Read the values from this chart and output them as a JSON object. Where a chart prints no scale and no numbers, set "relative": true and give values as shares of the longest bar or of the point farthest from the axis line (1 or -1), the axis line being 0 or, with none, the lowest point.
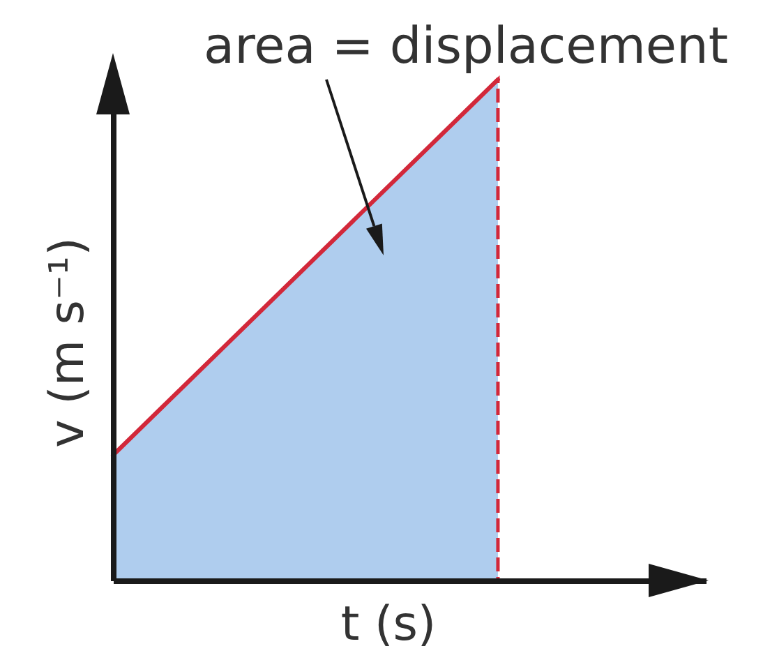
{
  "chart_data": {
    "type": "area",
    "relative": true,
    "xlabel": "t (s)",
    "ylabel": "v (m s⁻¹)",
    "annotations": [
      "area = displacement"
    ],
    "categories": [
      null,
      null
    ],
    "series": [
      {
        "color": "#afcdee",
        "values": [
          0.25,
          1
        ],
        "line_style": "dashed"
      },
      {
        "type": "line",
        "color": "#d2283a",
        "values": [
          0.25,
          1
        ]
      }
    ]
  }
}
